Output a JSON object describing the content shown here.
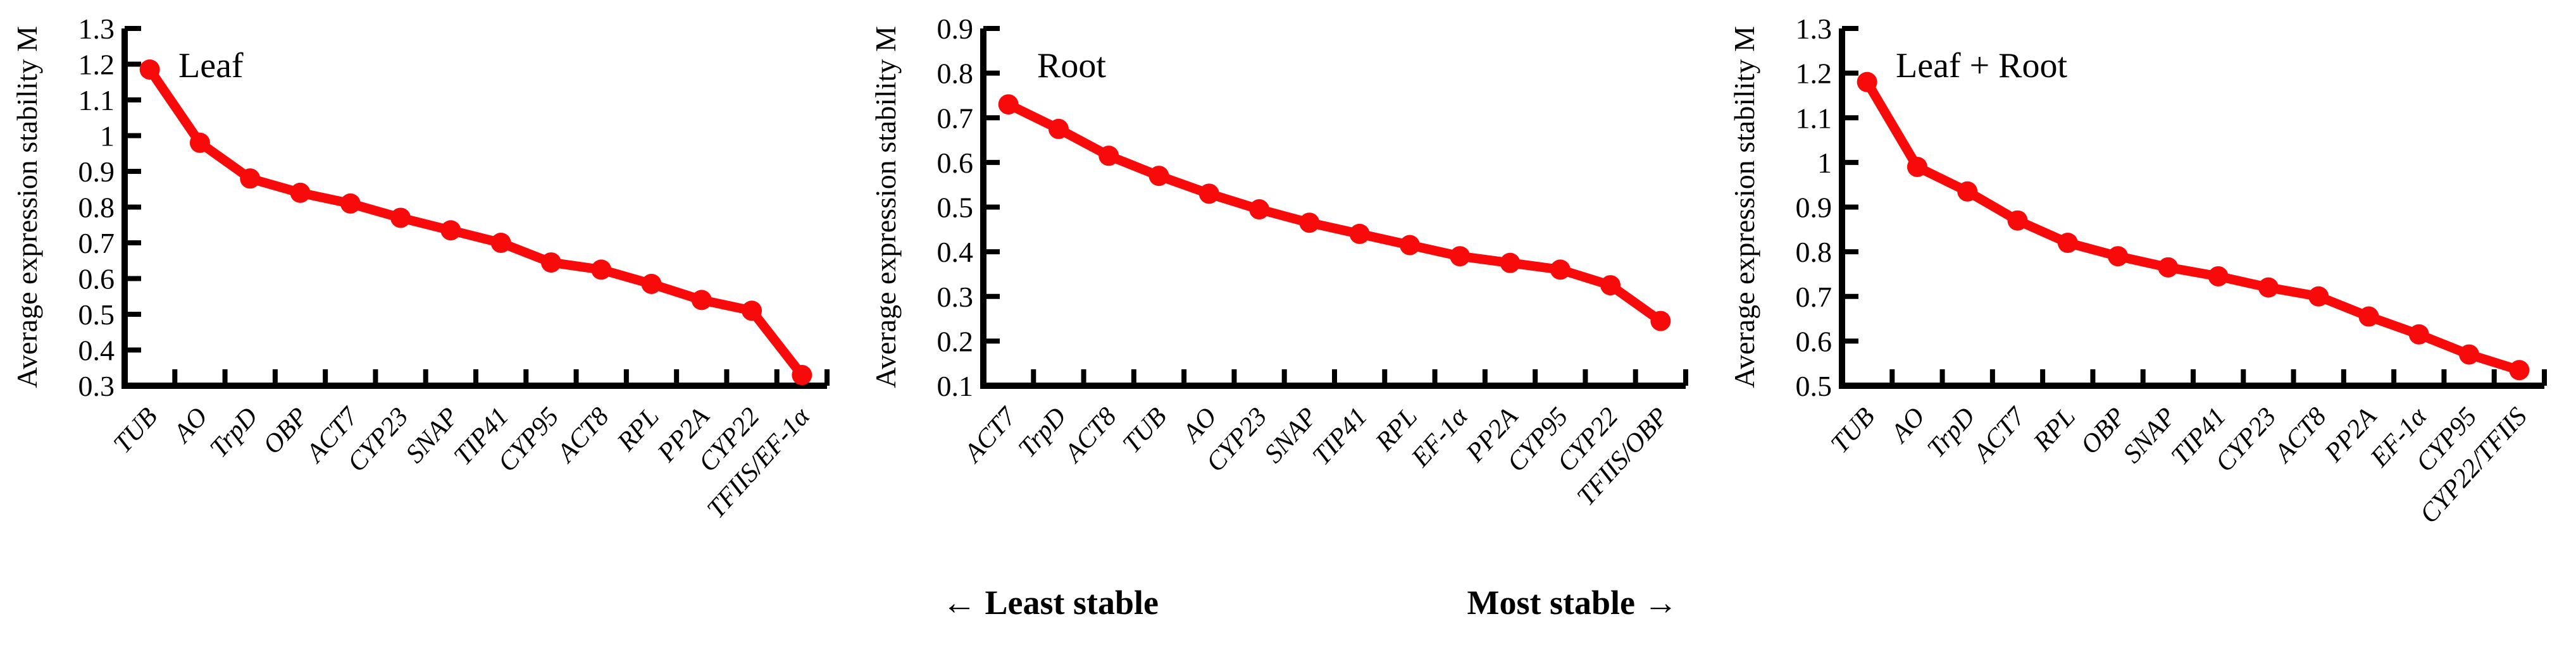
{
  "figure": {
    "background": "#ffffff",
    "axis_color": "#000000",
    "text_color": "#000000",
    "series_color": "#F90A0A",
    "captions": {
      "least_stable": "← Least stable",
      "most_stable": "Most stable →"
    }
  },
  "chart_data": [
    {
      "type": "line",
      "id": "leaf",
      "title": "Leaf",
      "ylabel": "Average expression stability M",
      "xlabel": "",
      "grid": false,
      "legend": "none",
      "ylim": [
        0.3,
        1.3
      ],
      "ytick_labels": [
        "0.3",
        "0.4",
        "0.5",
        "0.6",
        "0.7",
        "0.8",
        "0.9",
        "1",
        "1.1",
        "1.2",
        "1.3"
      ],
      "series_color": "#F90A0A",
      "categories": [
        "TUB",
        "AO",
        "TrpD",
        "OBP",
        "ACT7",
        "CYP23",
        "SNAP",
        "TIP41",
        "CYP95",
        "ACT8",
        "RPL",
        "PP2A",
        "CYP22",
        "TFIIS/EF-1α"
      ],
      "values": [
        1.185,
        0.98,
        0.88,
        0.84,
        0.81,
        0.77,
        0.735,
        0.7,
        0.645,
        0.625,
        0.585,
        0.54,
        0.51,
        0.33
      ]
    },
    {
      "type": "line",
      "id": "root",
      "title": "Root",
      "ylabel": "Average expression stability M",
      "xlabel": "",
      "grid": false,
      "legend": "none",
      "ylim": [
        0.1,
        0.9
      ],
      "ytick_labels": [
        "0.1",
        "0.2",
        "0.3",
        "0.4",
        "0.5",
        "0.6",
        "0.7",
        "0.8",
        "0.9"
      ],
      "series_color": "#F90A0A",
      "categories": [
        "ACT7",
        "TrpD",
        "ACT8",
        "TUB",
        "AO",
        "CYP23",
        "SNAP",
        "TIP41",
        "RPL",
        "EF-1α",
        "PP2A",
        "CYP95",
        "CYP22",
        "TFIIS/OBP"
      ],
      "values": [
        0.73,
        0.675,
        0.615,
        0.57,
        0.53,
        0.495,
        0.465,
        0.44,
        0.415,
        0.39,
        0.375,
        0.36,
        0.325,
        0.245
      ]
    },
    {
      "type": "line",
      "id": "leaf-root",
      "title": "Leaf + Root",
      "ylabel": "Average expression stability M",
      "xlabel": "",
      "grid": false,
      "legend": "none",
      "ylim": [
        0.5,
        1.3
      ],
      "ytick_labels": [
        "0.5",
        "0.6",
        "0.7",
        "0.8",
        "0.9",
        "1",
        "1.1",
        "1.2",
        "1.3"
      ],
      "series_color": "#F90A0A",
      "categories": [
        "TUB",
        "AO",
        "TrpD",
        "ACT7",
        "RPL",
        "OBP",
        "SNAP",
        "TIP41",
        "CYP23",
        "ACT8",
        "PP2A",
        "EF-1α",
        "CYP95",
        "CYP22/TFIIS"
      ],
      "values": [
        1.18,
        0.99,
        0.935,
        0.87,
        0.82,
        0.79,
        0.765,
        0.745,
        0.72,
        0.7,
        0.655,
        0.615,
        0.57,
        0.535
      ]
    }
  ]
}
